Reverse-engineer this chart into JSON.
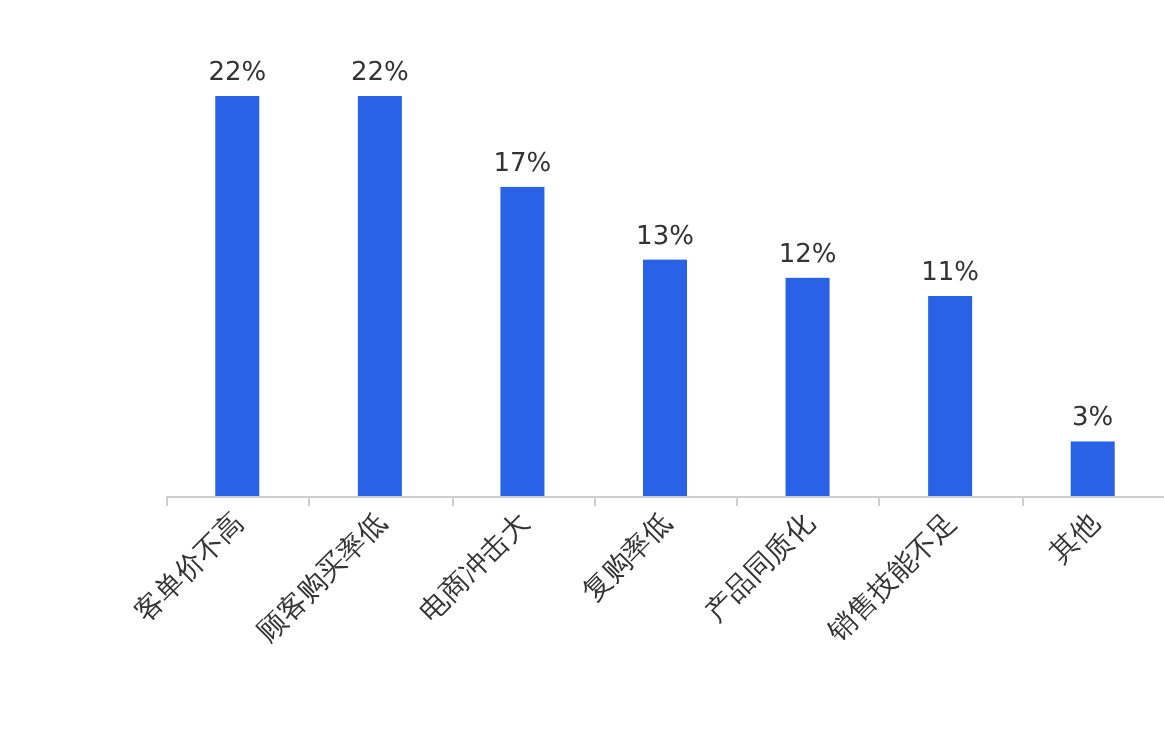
{
  "chart_data": {
    "type": "bar",
    "categories": [
      "客单价不高",
      "顾客购买率低",
      "电商冲击大",
      "复购率低",
      "产品同质化",
      "销售技能不足",
      "其他"
    ],
    "values": [
      22,
      22,
      17,
      13,
      12,
      11,
      3
    ],
    "value_labels": [
      "22%",
      "22%",
      "17%",
      "13%",
      "12%",
      "11%",
      "3%"
    ],
    "color": "#2962e6"
  }
}
